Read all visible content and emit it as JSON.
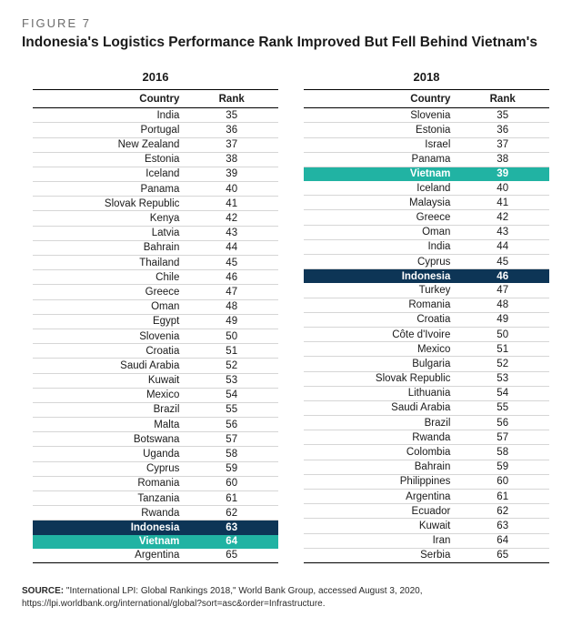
{
  "figure_label": "FIGURE 7",
  "title": "Indonesia's Logistics Performance Rank Improved But Fell Behind Vietnam's",
  "colors": {
    "background": "#ffffff",
    "text": "#1a1a1a",
    "row_border": "#d6d6d6",
    "highlight_indonesia": "#0d3556",
    "highlight_vietnam": "#21b3a3",
    "highlight_text": "#ffffff"
  },
  "typography": {
    "body_font": "Arial, Helvetica, sans-serif",
    "figure_label_fontsize": 13,
    "title_fontsize": 15.5,
    "year_fontsize": 13,
    "cell_fontsize": 11.5,
    "source_fontsize": 10
  },
  "headers": {
    "country": "Country",
    "rank": "Rank"
  },
  "tables": [
    {
      "year": "2016",
      "rows": [
        {
          "country": "India",
          "rank": 35
        },
        {
          "country": "Portugal",
          "rank": 36
        },
        {
          "country": "New Zealand",
          "rank": 37
        },
        {
          "country": "Estonia",
          "rank": 38
        },
        {
          "country": "Iceland",
          "rank": 39
        },
        {
          "country": "Panama",
          "rank": 40
        },
        {
          "country": "Slovak Republic",
          "rank": 41
        },
        {
          "country": "Kenya",
          "rank": 42
        },
        {
          "country": "Latvia",
          "rank": 43
        },
        {
          "country": "Bahrain",
          "rank": 44
        },
        {
          "country": "Thailand",
          "rank": 45
        },
        {
          "country": "Chile",
          "rank": 46
        },
        {
          "country": "Greece",
          "rank": 47
        },
        {
          "country": "Oman",
          "rank": 48
        },
        {
          "country": "Egypt",
          "rank": 49
        },
        {
          "country": "Slovenia",
          "rank": 50
        },
        {
          "country": "Croatia",
          "rank": 51
        },
        {
          "country": "Saudi Arabia",
          "rank": 52
        },
        {
          "country": "Kuwait",
          "rank": 53
        },
        {
          "country": "Mexico",
          "rank": 54
        },
        {
          "country": "Brazil",
          "rank": 55
        },
        {
          "country": "Malta",
          "rank": 56
        },
        {
          "country": "Botswana",
          "rank": 57
        },
        {
          "country": "Uganda",
          "rank": 58
        },
        {
          "country": "Cyprus",
          "rank": 59
        },
        {
          "country": "Romania",
          "rank": 60
        },
        {
          "country": "Tanzania",
          "rank": 61
        },
        {
          "country": "Rwanda",
          "rank": 62
        },
        {
          "country": "Indonesia",
          "rank": 63,
          "highlight": "indonesia"
        },
        {
          "country": "Vietnam",
          "rank": 64,
          "highlight": "vietnam"
        },
        {
          "country": "Argentina",
          "rank": 65
        }
      ]
    },
    {
      "year": "2018",
      "rows": [
        {
          "country": "Slovenia",
          "rank": 35
        },
        {
          "country": "Estonia",
          "rank": 36
        },
        {
          "country": "Israel",
          "rank": 37
        },
        {
          "country": "Panama",
          "rank": 38
        },
        {
          "country": "Vietnam",
          "rank": 39,
          "highlight": "vietnam"
        },
        {
          "country": "Iceland",
          "rank": 40
        },
        {
          "country": "Malaysia",
          "rank": 41
        },
        {
          "country": "Greece",
          "rank": 42
        },
        {
          "country": "Oman",
          "rank": 43
        },
        {
          "country": "India",
          "rank": 44
        },
        {
          "country": "Cyprus",
          "rank": 45
        },
        {
          "country": "Indonesia",
          "rank": 46,
          "highlight": "indonesia"
        },
        {
          "country": "Turkey",
          "rank": 47
        },
        {
          "country": "Romania",
          "rank": 48
        },
        {
          "country": "Croatia",
          "rank": 49
        },
        {
          "country": "Côte d'Ivoire",
          "rank": 50
        },
        {
          "country": "Mexico",
          "rank": 51
        },
        {
          "country": "Bulgaria",
          "rank": 52
        },
        {
          "country": "Slovak Republic",
          "rank": 53
        },
        {
          "country": "Lithuania",
          "rank": 54
        },
        {
          "country": "Saudi Arabia",
          "rank": 55
        },
        {
          "country": "Brazil",
          "rank": 56
        },
        {
          "country": "Rwanda",
          "rank": 57
        },
        {
          "country": "Colombia",
          "rank": 58
        },
        {
          "country": "Bahrain",
          "rank": 59
        },
        {
          "country": "Philippines",
          "rank": 60
        },
        {
          "country": "Argentina",
          "rank": 61
        },
        {
          "country": "Ecuador",
          "rank": 62
        },
        {
          "country": "Kuwait",
          "rank": 63
        },
        {
          "country": "Iran",
          "rank": 64
        },
        {
          "country": "Serbia",
          "rank": 65
        }
      ]
    }
  ],
  "source_label": "SOURCE:",
  "source_text": " \"International LPI: Global Rankings 2018,\" World Bank Group, accessed August 3, 2020, https://lpi.worldbank.org/international/global?sort=asc&order=Infrastructure."
}
